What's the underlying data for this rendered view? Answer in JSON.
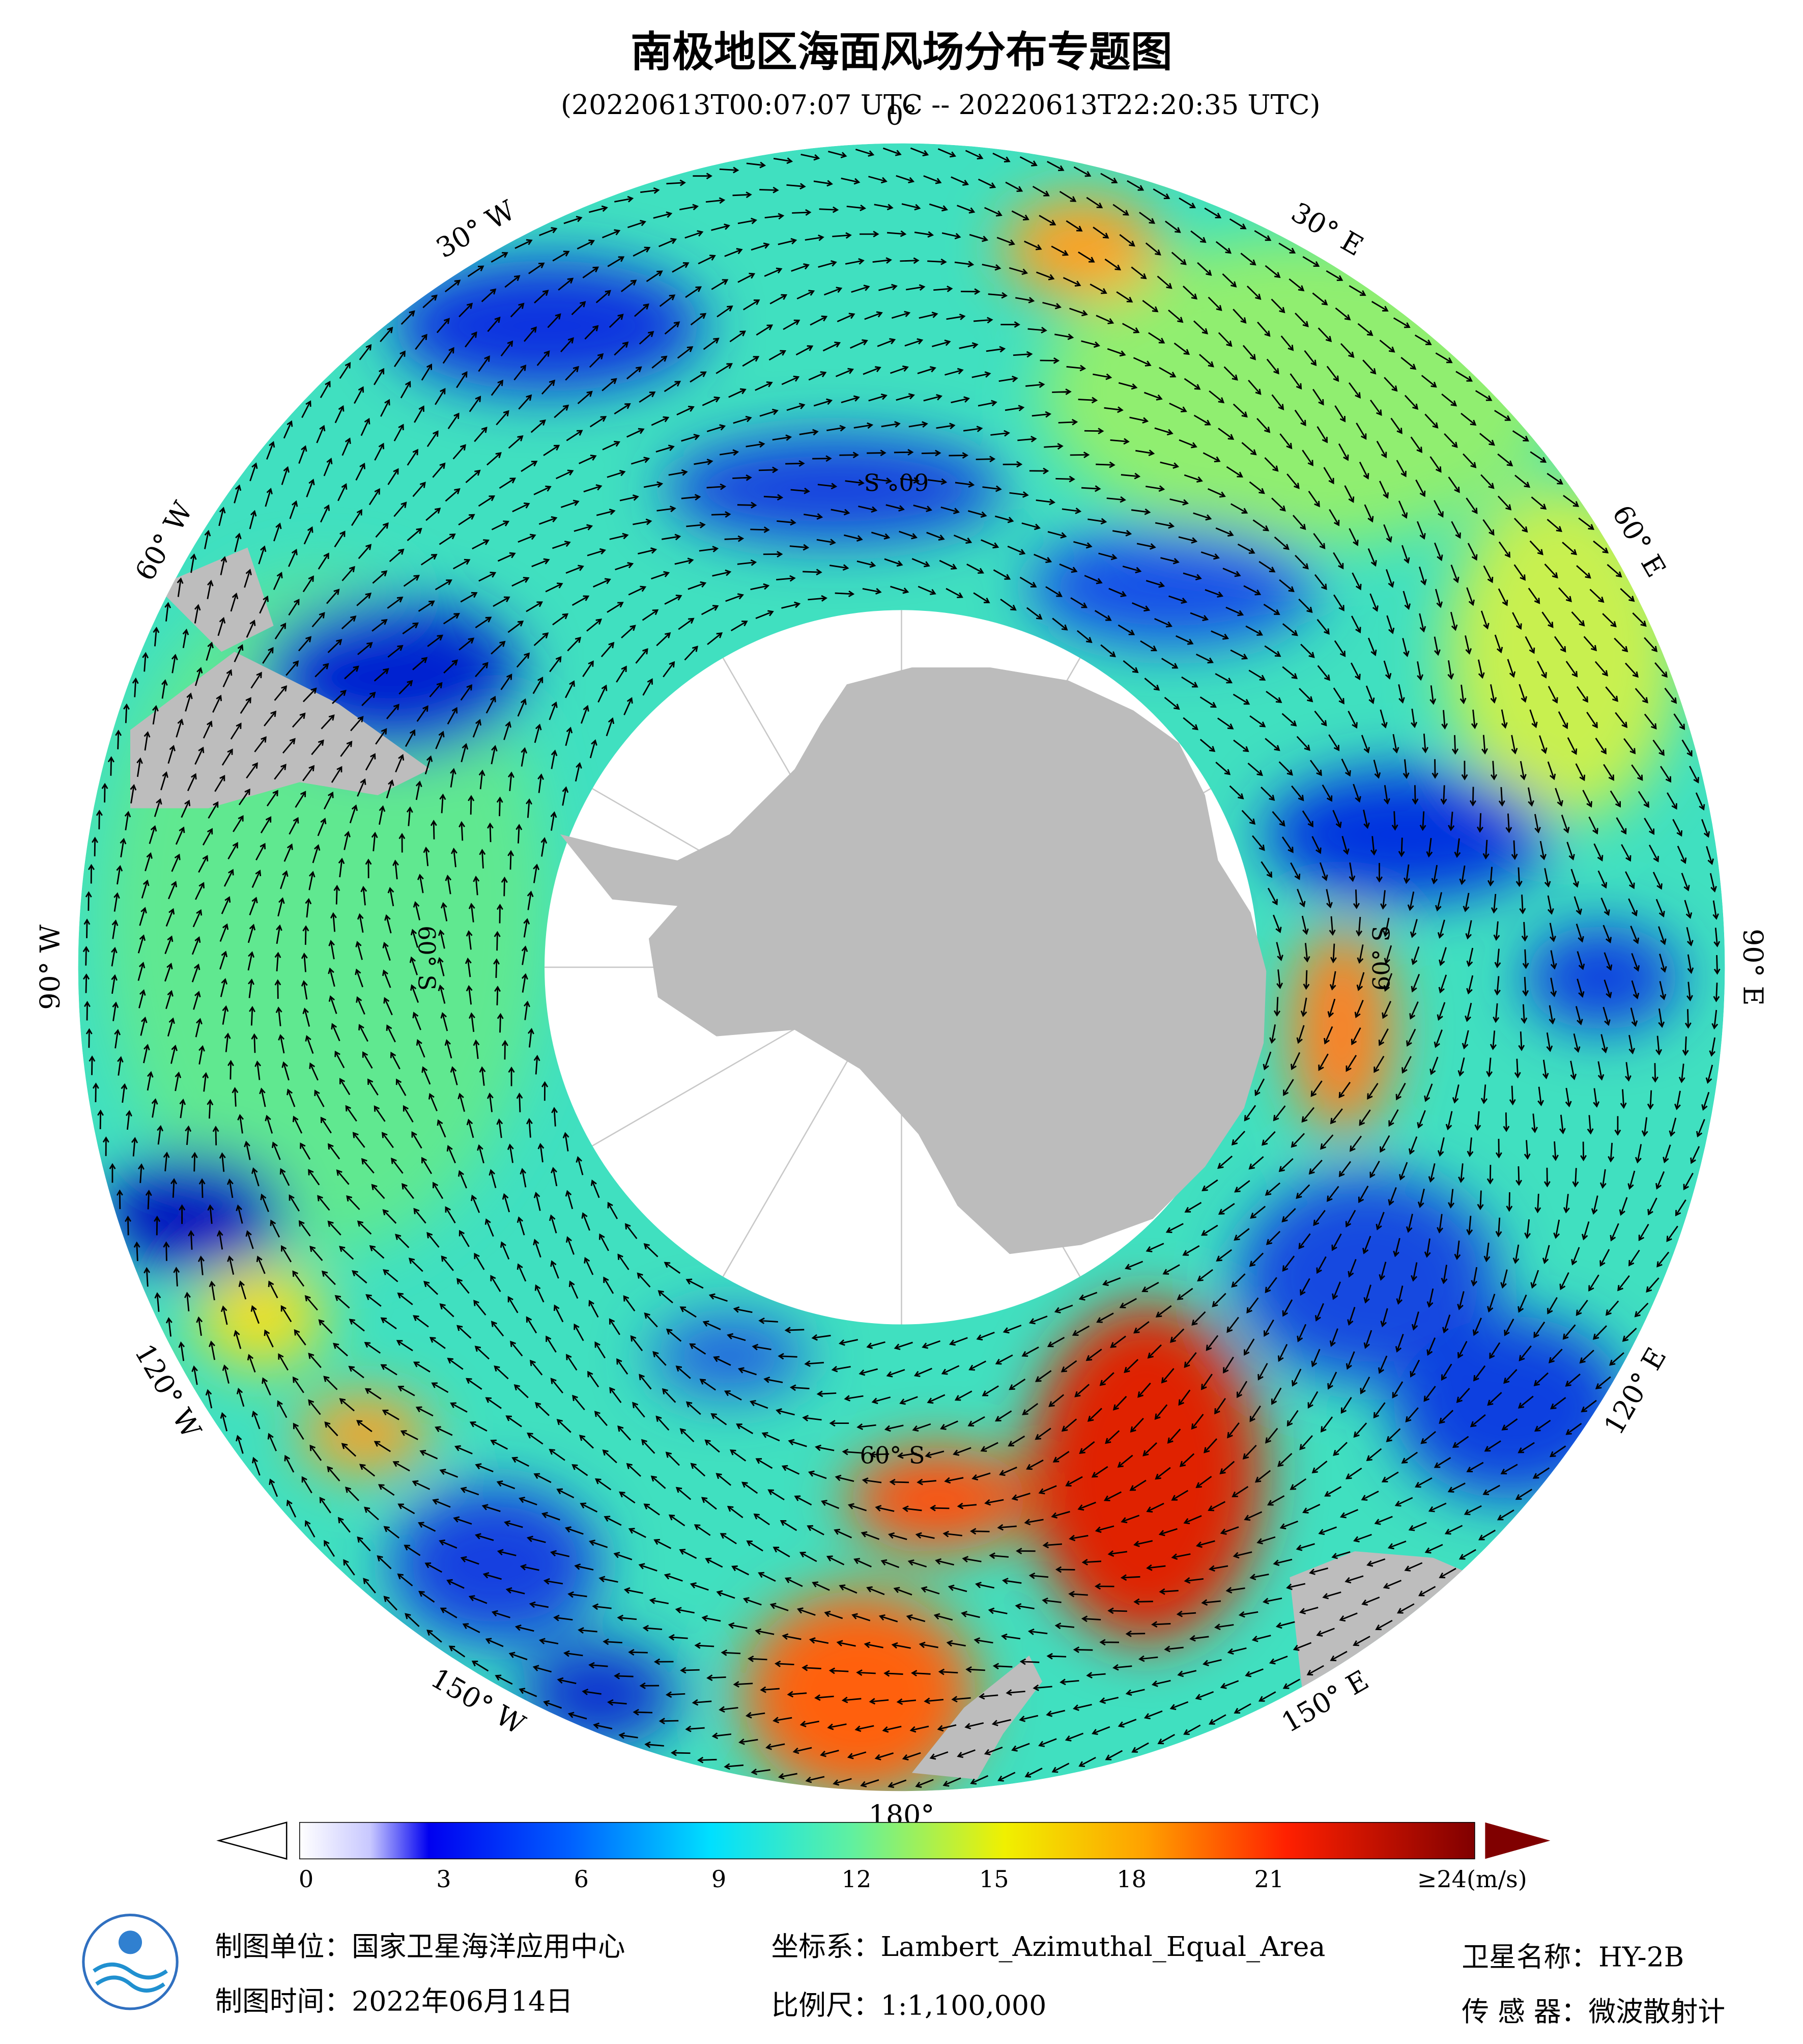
{
  "header": {
    "title": "南极地区海面风场分布专题图",
    "subtitle": "(20220613T00:07:07 UTC -- 20220613T22:20:35 UTC)"
  },
  "map": {
    "longitude_labels": [
      "0°",
      "30° E",
      "60° E",
      "90° E",
      "120° E",
      "150° E",
      "180°",
      "150° W",
      "120° W",
      "90° W",
      "60° W",
      "30° W"
    ],
    "latitude_labels": [
      "60° S",
      "60° S",
      "60° S",
      "60° S"
    ]
  },
  "colorbar": {
    "ticks": [
      0,
      3,
      6,
      9,
      12,
      15,
      18,
      21,
      {
        "value": 24,
        "label": "≥24(m/s)"
      }
    ]
  },
  "footer": {
    "unit": "制图单位：国家卫星海洋应用中心",
    "time": "制图时间：2022年06月14日",
    "crs": "坐标系：Lambert_Azimuthal_Equal_Area",
    "scale": "比例尺：1:1,100,000",
    "satellite": "卫星名称：HY-2B",
    "sensor": "传 感 器：微波散射计"
  }
}
